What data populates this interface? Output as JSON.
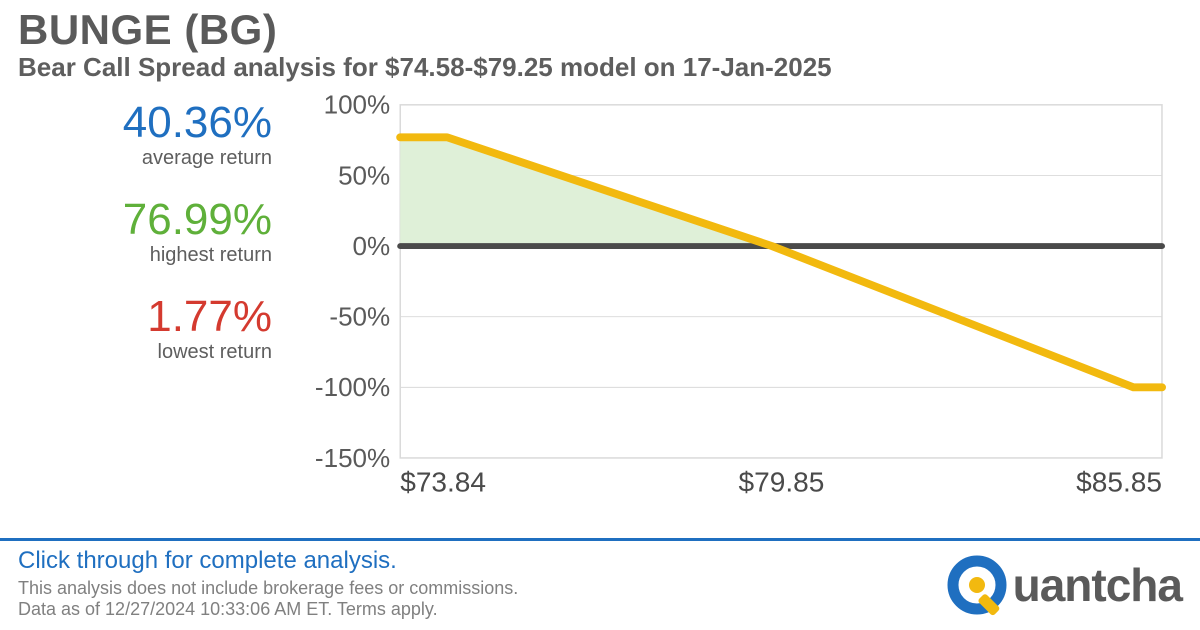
{
  "header": {
    "title": "BUNGE (BG)",
    "subtitle": "Bear Call Spread analysis for $74.58-$79.25 model on 17-Jan-2025"
  },
  "stats": {
    "average": {
      "value": "40.36%",
      "label": "average return",
      "color": "#1f6fc0"
    },
    "highest": {
      "value": "76.99%",
      "label": "highest return",
      "color": "#5fb03a"
    },
    "lowest": {
      "value": "1.77%",
      "label": "lowest return",
      "color": "#d43a2f"
    }
  },
  "chart": {
    "type": "line",
    "background_color": "#ffffff",
    "grid_color": "#d9d9d9",
    "zero_line_color": "#4a4a4a",
    "zero_line_width": 6,
    "line_color": "#f2b90f",
    "line_width": 8,
    "profit_fill": "#dff0d8",
    "y": {
      "min": -150,
      "max": 100,
      "step": 50,
      "ticks": [
        -150,
        -100,
        -50,
        0,
        50,
        100
      ],
      "tick_labels": [
        "-150%",
        "-100%",
        "-50%",
        "0%",
        "50%",
        "100%"
      ],
      "fontsize": 26
    },
    "x": {
      "min": 73.84,
      "max": 85.85,
      "ticks": [
        73.84,
        79.85,
        85.85
      ],
      "tick_labels": [
        "$73.84",
        "$79.85",
        "$85.85"
      ],
      "fontsize": 28
    },
    "series": [
      {
        "x": 73.84,
        "y": 76.99
      },
      {
        "x": 74.58,
        "y": 76.99
      },
      {
        "x": 79.7,
        "y": 0
      },
      {
        "x": 85.4,
        "y": -100
      },
      {
        "x": 85.85,
        "y": -100
      }
    ],
    "profit_region_x": [
      73.84,
      79.7
    ]
  },
  "footer": {
    "cta": "Click through for complete analysis.",
    "cta_color": "#1f6fc0",
    "border_color": "#1f6fc0",
    "disclaimer": "This analysis does not include brokerage fees or commissions.",
    "asof": "Data as of 12/27/2024 10:33:06 AM ET. Terms apply.",
    "brand_name": "uantcha",
    "brand_accent": "#f2b90f",
    "brand_ring": "#1f6fc0"
  }
}
